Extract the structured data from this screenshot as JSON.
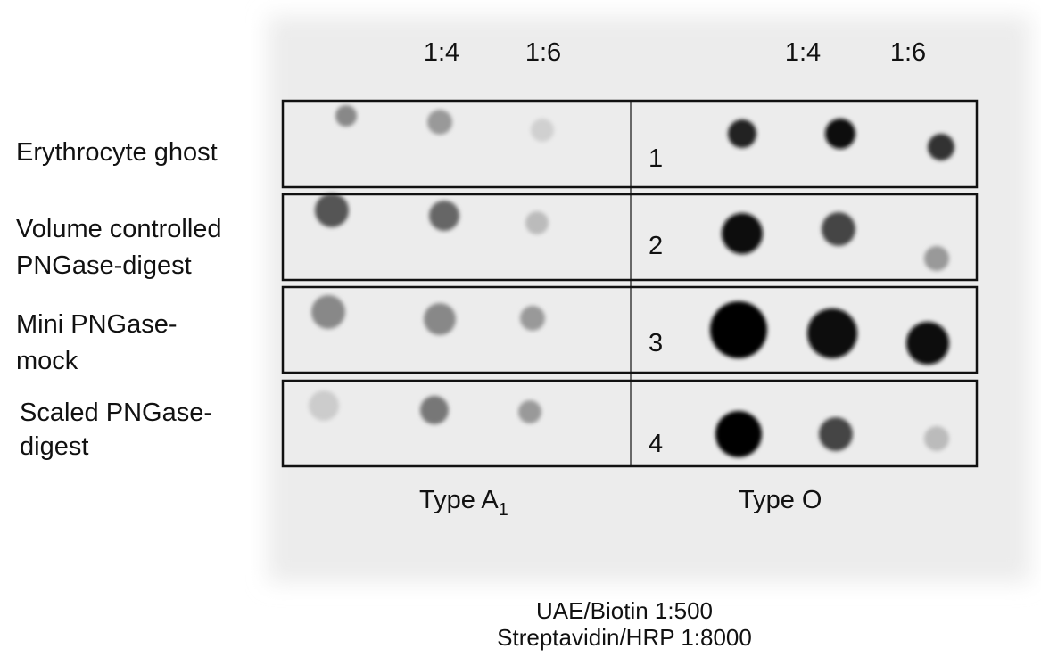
{
  "column_labels": {
    "type_a1": [
      "1:4",
      "1:6"
    ],
    "type_o": [
      "1:4",
      "1:6"
    ]
  },
  "rows": [
    {
      "label_lines": [
        "Erythrocyte ghost"
      ],
      "number": "1"
    },
    {
      "label_lines": [
        "Volume controlled",
        "PNGase-digest"
      ],
      "number": "2"
    },
    {
      "label_lines": [
        "Mini PNGase-",
        "mock"
      ],
      "number": "3"
    },
    {
      "label_lines": [
        "Scaled PNGase-",
        "digest"
      ],
      "number": "4"
    }
  ],
  "groups": [
    {
      "text": "Type A",
      "subscript": "1"
    },
    {
      "text": "Type O"
    }
  ],
  "footer": [
    "UAE/Biotin 1:500",
    "Streptavidin/HRP 1:8000"
  ]
}
